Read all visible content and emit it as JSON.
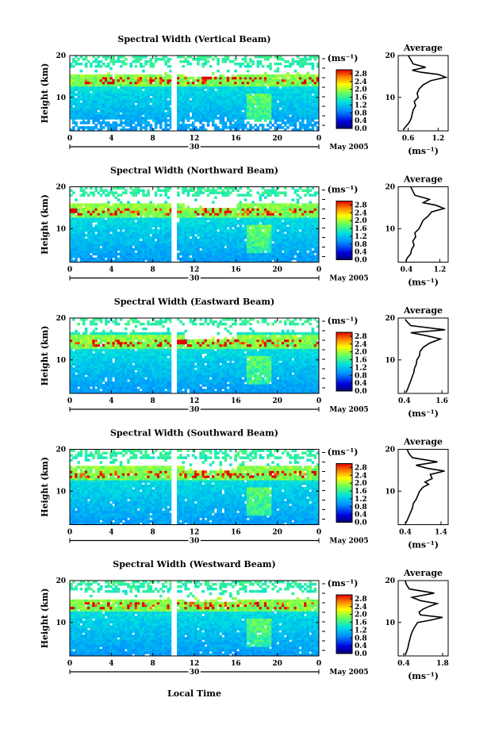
{
  "figure": {
    "x_axis_title": "Local Time",
    "height_axis_title": "Height (km)",
    "profile_title": "Average",
    "colorbar_unit": "(ms⁻¹)",
    "profile_unit": "(ms⁻¹)",
    "date_label": "May 2005",
    "day_label": "30"
  },
  "chart_data": [
    {
      "type": "heatmap",
      "title": "Spectral Width (Vertical Beam)",
      "xlabel": "",
      "ylabel": "Height (km)",
      "x_ticks": [
        "0",
        "4",
        "8",
        "12",
        "16",
        "20",
        "0"
      ],
      "xlim": [
        0,
        24
      ],
      "y_ticks": [
        "10",
        "20"
      ],
      "ylim": [
        2,
        20
      ],
      "colorbar": {
        "ticks": [
          "0.0",
          "0.4",
          "0.8",
          "1.2",
          "1.6",
          "2.0",
          "2.4",
          "2.8"
        ],
        "range": [
          0,
          3.0
        ],
        "unit": "(ms⁻¹)"
      },
      "data_gap": [
        9.8,
        10.2
      ],
      "white_band_km": [
        15.5,
        17
      ],
      "profile": {
        "title": "Average",
        "xlabel": "(ms⁻¹)",
        "x_ticks": [
          "0.6",
          "1.2"
        ],
        "xlim": [
          0.4,
          1.4
        ],
        "y_ticks": [
          "10",
          "20"
        ],
        "ylim": [
          2,
          20
        ],
        "points": [
          [
            0.5,
            2.2
          ],
          [
            0.55,
            3
          ],
          [
            0.62,
            4
          ],
          [
            0.66,
            5
          ],
          [
            0.68,
            6
          ],
          [
            0.7,
            7
          ],
          [
            0.75,
            8
          ],
          [
            0.72,
            9
          ],
          [
            0.8,
            10
          ],
          [
            0.78,
            11
          ],
          [
            0.82,
            12
          ],
          [
            0.9,
            13
          ],
          [
            1.05,
            14
          ],
          [
            1.35,
            14.8
          ],
          [
            1.2,
            15.5
          ],
          [
            0.85,
            16
          ],
          [
            0.68,
            16.5
          ],
          [
            0.95,
            17.2
          ],
          [
            0.7,
            18
          ],
          [
            0.65,
            19
          ],
          [
            0.6,
            20
          ]
        ]
      }
    },
    {
      "type": "heatmap",
      "title": "Spectral Width (Northward Beam)",
      "xlabel": "",
      "ylabel": "Height (km)",
      "x_ticks": [
        "0",
        "4",
        "8",
        "12",
        "16",
        "20",
        "0"
      ],
      "xlim": [
        0,
        24
      ],
      "y_ticks": [
        "10",
        "20"
      ],
      "ylim": [
        2,
        20
      ],
      "colorbar": {
        "ticks": [
          "0.0",
          "0.4",
          "0.8",
          "1.2",
          "1.6",
          "2.0",
          "2.4",
          "2.8"
        ],
        "range": [
          0,
          3.0
        ],
        "unit": "(ms⁻¹)"
      },
      "data_gap": [
        9.8,
        10.2
      ],
      "white_band_km": [
        16,
        18
      ],
      "profile": {
        "title": "Average",
        "xlabel": "(ms⁻¹)",
        "x_ticks": [
          "0.4",
          "1.2"
        ],
        "xlim": [
          0.2,
          1.4
        ],
        "y_ticks": [
          "10",
          "20"
        ],
        "ylim": [
          2,
          20
        ],
        "points": [
          [
            0.38,
            2.2
          ],
          [
            0.42,
            3
          ],
          [
            0.5,
            4
          ],
          [
            0.52,
            5
          ],
          [
            0.58,
            6
          ],
          [
            0.55,
            7
          ],
          [
            0.62,
            8
          ],
          [
            0.6,
            9
          ],
          [
            0.7,
            10
          ],
          [
            0.75,
            11
          ],
          [
            0.8,
            12
          ],
          [
            0.92,
            13
          ],
          [
            1.0,
            14
          ],
          [
            1.3,
            14.8
          ],
          [
            1.1,
            15.6
          ],
          [
            0.8,
            16.2
          ],
          [
            0.95,
            17
          ],
          [
            0.6,
            18
          ],
          [
            0.55,
            19
          ],
          [
            0.5,
            20
          ]
        ]
      }
    },
    {
      "type": "heatmap",
      "title": "Spectral Width (Eastward Beam)",
      "xlabel": "",
      "ylabel": "Height (km)",
      "x_ticks": [
        "0",
        "4",
        "8",
        "12",
        "16",
        "20",
        "0"
      ],
      "xlim": [
        0,
        24
      ],
      "y_ticks": [
        "10",
        "20"
      ],
      "ylim": [
        2,
        20
      ],
      "colorbar": {
        "ticks": [
          "0.0",
          "0.4",
          "0.8",
          "1.2",
          "1.6",
          "2.0",
          "2.4",
          "2.8"
        ],
        "range": [
          0,
          3.0
        ],
        "unit": "(ms⁻¹)"
      },
      "data_gap": [
        9.8,
        10.2
      ],
      "white_band_km": [
        16.5,
        18.5
      ],
      "profile": {
        "title": "Average",
        "xlabel": "(ms⁻¹)",
        "x_ticks": [
          "0.4",
          "1.6"
        ],
        "xlim": [
          0.2,
          1.8
        ],
        "y_ticks": [
          "10",
          "20"
        ],
        "ylim": [
          2,
          20
        ],
        "points": [
          [
            0.45,
            2.2
          ],
          [
            0.5,
            3
          ],
          [
            0.55,
            4
          ],
          [
            0.6,
            5
          ],
          [
            0.65,
            6
          ],
          [
            0.7,
            7
          ],
          [
            0.72,
            8
          ],
          [
            0.78,
            9
          ],
          [
            0.8,
            10
          ],
          [
            0.88,
            11
          ],
          [
            0.9,
            12
          ],
          [
            1.0,
            13
          ],
          [
            1.2,
            14
          ],
          [
            1.55,
            15
          ],
          [
            1.1,
            15.8
          ],
          [
            0.6,
            16.5
          ],
          [
            1.7,
            17.2
          ],
          [
            0.6,
            18.2
          ],
          [
            0.5,
            19
          ],
          [
            0.42,
            19.7
          ]
        ]
      }
    },
    {
      "type": "heatmap",
      "title": "Spectral Width (Southward Beam)",
      "xlabel": "",
      "ylabel": "Height (km)",
      "x_ticks": [
        "0",
        "4",
        "8",
        "12",
        "16",
        "20",
        "0"
      ],
      "xlim": [
        0,
        24
      ],
      "y_ticks": [
        "10",
        "20"
      ],
      "ylim": [
        2,
        20
      ],
      "colorbar": {
        "ticks": [
          "0.0",
          "0.4",
          "0.8",
          "1.2",
          "1.6",
          "2.0",
          "2.4",
          "2.8"
        ],
        "range": [
          0,
          3.0
        ],
        "unit": "(ms⁻¹)"
      },
      "data_gap": [
        9.8,
        10.2
      ],
      "white_band_km": [
        16,
        17.5
      ],
      "profile": {
        "title": "Average",
        "xlabel": "(ms⁻¹)",
        "x_ticks": [
          "0.4",
          "1.4"
        ],
        "xlim": [
          0.2,
          1.6
        ],
        "y_ticks": [
          "10",
          "20"
        ],
        "ylim": [
          2,
          20
        ],
        "points": [
          [
            0.4,
            2.2
          ],
          [
            0.45,
            3
          ],
          [
            0.5,
            4
          ],
          [
            0.55,
            5
          ],
          [
            0.6,
            6
          ],
          [
            0.62,
            7
          ],
          [
            0.7,
            8
          ],
          [
            0.75,
            9
          ],
          [
            0.8,
            10
          ],
          [
            0.9,
            11
          ],
          [
            1.05,
            11.6
          ],
          [
            0.95,
            12.2
          ],
          [
            1.15,
            13
          ],
          [
            1.1,
            14
          ],
          [
            1.5,
            14.8
          ],
          [
            1.0,
            15.5
          ],
          [
            0.7,
            16.2
          ],
          [
            1.3,
            17
          ],
          [
            0.6,
            18
          ],
          [
            0.5,
            19
          ],
          [
            0.45,
            20
          ]
        ]
      }
    },
    {
      "type": "heatmap",
      "title": "Spectral Width (Westward Beam)",
      "xlabel": "Local Time",
      "ylabel": "Height (km)",
      "x_ticks": [
        "0",
        "4",
        "8",
        "12",
        "16",
        "20",
        "0"
      ],
      "xlim": [
        0,
        24
      ],
      "y_ticks": [
        "10",
        "20"
      ],
      "ylim": [
        2,
        20
      ],
      "colorbar": {
        "ticks": [
          "0.0",
          "0.4",
          "0.8",
          "1.2",
          "1.6",
          "2.0",
          "2.4",
          "2.8"
        ],
        "range": [
          0,
          3.0
        ],
        "unit": "(ms⁻¹)"
      },
      "data_gap": [
        9.8,
        10.2
      ],
      "white_band_km": [
        15.5,
        17
      ],
      "profile": {
        "title": "Average",
        "xlabel": "(ms⁻¹)",
        "x_ticks": [
          "0.4",
          "1.8"
        ],
        "xlim": [
          0.2,
          2.0
        ],
        "y_ticks": [
          "10",
          "20"
        ],
        "ylim": [
          2,
          20
        ],
        "points": [
          [
            0.45,
            2.2
          ],
          [
            0.5,
            3
          ],
          [
            0.55,
            4
          ],
          [
            0.58,
            5
          ],
          [
            0.62,
            6
          ],
          [
            0.66,
            7
          ],
          [
            0.72,
            8
          ],
          [
            0.8,
            9
          ],
          [
            0.9,
            10
          ],
          [
            1.4,
            10.6
          ],
          [
            1.8,
            11.2
          ],
          [
            1.0,
            11.8
          ],
          [
            0.95,
            12.5
          ],
          [
            1.1,
            13.2
          ],
          [
            1.3,
            13.8
          ],
          [
            1.6,
            14.5
          ],
          [
            1.0,
            15.2
          ],
          [
            0.7,
            16
          ],
          [
            1.5,
            17
          ],
          [
            0.6,
            18
          ],
          [
            0.5,
            19
          ],
          [
            0.45,
            20
          ]
        ]
      }
    }
  ]
}
